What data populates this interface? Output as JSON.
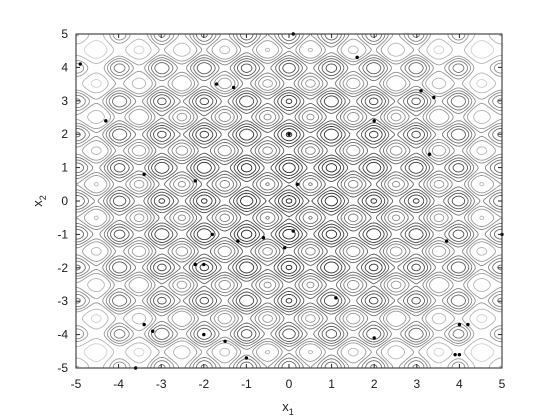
{
  "chart_data": {
    "type": "contour",
    "title": "",
    "xlabel": "x",
    "xlabel_sub": "1",
    "ylabel": "x",
    "ylabel_sub": "2",
    "xlim": [
      -5,
      5
    ],
    "ylim": [
      -5,
      5
    ],
    "xticks": [
      -5,
      -4,
      -3,
      -2,
      -1,
      0,
      1,
      2,
      3,
      4,
      5
    ],
    "yticks": [
      -5,
      -4,
      -3,
      -2,
      -1,
      0,
      1,
      2,
      3,
      4,
      5
    ],
    "grid": false,
    "function": "sum of cos-modulated quadratic (Rastrigin-like)",
    "colormap": "gray",
    "levels": 12,
    "points": [
      {
        "x": 0.1,
        "y": 5.0
      },
      {
        "x": -4.9,
        "y": 4.1
      },
      {
        "x": 1.6,
        "y": 4.3
      },
      {
        "x": -1.7,
        "y": 3.5
      },
      {
        "x": -1.3,
        "y": 3.4
      },
      {
        "x": 3.1,
        "y": 3.3
      },
      {
        "x": 3.4,
        "y": 3.1
      },
      {
        "x": -4.3,
        "y": 2.4
      },
      {
        "x": 2.0,
        "y": 2.4
      },
      {
        "x": 0.0,
        "y": 2.0
      },
      {
        "x": 3.3,
        "y": 1.4
      },
      {
        "x": -3.4,
        "y": 0.8
      },
      {
        "x": -2.2,
        "y": 0.6
      },
      {
        "x": 0.2,
        "y": 0.5
      },
      {
        "x": 0.1,
        "y": -0.9
      },
      {
        "x": -0.6,
        "y": -1.1
      },
      {
        "x": -1.8,
        "y": -1.0
      },
      {
        "x": 3.7,
        "y": -1.2
      },
      {
        "x": 5.0,
        "y": -1.0
      },
      {
        "x": -1.2,
        "y": -1.2
      },
      {
        "x": -0.1,
        "y": -1.4
      },
      {
        "x": -2.0,
        "y": -1.9
      },
      {
        "x": -2.2,
        "y": -1.9
      },
      {
        "x": 1.1,
        "y": -2.9
      },
      {
        "x": -3.4,
        "y": -3.7
      },
      {
        "x": -3.2,
        "y": -3.9
      },
      {
        "x": -2.0,
        "y": -4.0
      },
      {
        "x": 4.2,
        "y": -3.7
      },
      {
        "x": 4.0,
        "y": -3.7
      },
      {
        "x": 2.0,
        "y": -4.1
      },
      {
        "x": -1.5,
        "y": -4.2
      },
      {
        "x": 3.9,
        "y": -4.6
      },
      {
        "x": 4.0,
        "y": -4.6
      },
      {
        "x": -1.0,
        "y": -4.7
      },
      {
        "x": -3.6,
        "y": -5.0
      }
    ]
  }
}
